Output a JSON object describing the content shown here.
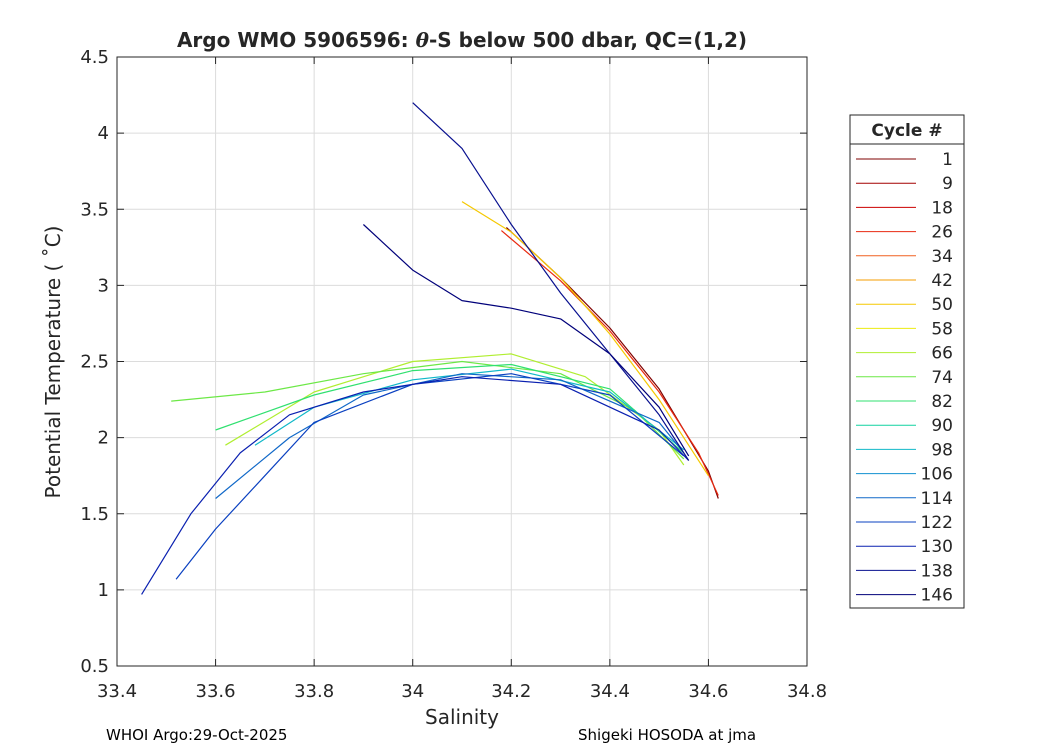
{
  "chart_data": {
    "type": "line",
    "title_prefix": "Argo WMO 5906596: ",
    "title_symbol": "θ",
    "title_suffix": "-S below 500 dbar,  QC=(1,2)",
    "xlabel": "Salinity",
    "ylabel": "Potential Temperature ( ˚C)",
    "xlim": [
      33.4,
      34.8
    ],
    "ylim": [
      0.5,
      4.5
    ],
    "xticks": [
      33.4,
      33.6,
      33.8,
      34,
      34.2,
      34.4,
      34.6,
      34.8
    ],
    "xtick_labels": [
      "33.4",
      "33.6",
      "33.8",
      "34",
      "34.2",
      "34.4",
      "34.6",
      "34.8"
    ],
    "yticks": [
      0.5,
      1,
      1.5,
      2,
      2.5,
      3,
      3.5,
      4,
      4.5
    ],
    "ytick_labels": [
      "0.5",
      "1",
      "1.5",
      "2",
      "2.5",
      "3",
      "3.5",
      "4",
      "4.5"
    ],
    "grid": true,
    "legend_title": "Cycle #",
    "legend_position": "outside-right",
    "legend_entries": [
      {
        "label": "1",
        "color": "#7f0000"
      },
      {
        "label": "9",
        "color": "#a30000"
      },
      {
        "label": "18",
        "color": "#cc0000"
      },
      {
        "label": "26",
        "color": "#e82a10"
      },
      {
        "label": "34",
        "color": "#f06020"
      },
      {
        "label": "42",
        "color": "#f59c00"
      },
      {
        "label": "50",
        "color": "#f5c800"
      },
      {
        "label": "58",
        "color": "#ecec10"
      },
      {
        "label": "66",
        "color": "#b0ee30"
      },
      {
        "label": "74",
        "color": "#6ce846"
      },
      {
        "label": "82",
        "color": "#30e070"
      },
      {
        "label": "90",
        "color": "#10d2a0"
      },
      {
        "label": "98",
        "color": "#10b8c8"
      },
      {
        "label": "106",
        "color": "#1090d0"
      },
      {
        "label": "114",
        "color": "#1068c8"
      },
      {
        "label": "122",
        "color": "#0a40c0"
      },
      {
        "label": "130",
        "color": "#0a20b0"
      },
      {
        "label": "138",
        "color": "#08108f"
      },
      {
        "label": "146",
        "color": "#00007a"
      }
    ],
    "series": [
      {
        "name": "1",
        "color": "#7f0000",
        "x": [
          34.19,
          34.3,
          34.4,
          34.5,
          34.6,
          34.62
        ],
        "y": [
          3.38,
          3.05,
          2.72,
          2.32,
          1.78,
          1.6
        ]
      },
      {
        "name": "26",
        "color": "#e82a10",
        "x": [
          34.18,
          34.3,
          34.4,
          34.5,
          34.58,
          34.62
        ],
        "y": [
          3.36,
          3.03,
          2.7,
          2.3,
          1.9,
          1.62
        ]
      },
      {
        "name": "50",
        "color": "#f5c800",
        "x": [
          34.1,
          34.2,
          34.3,
          34.4,
          34.5,
          34.6
        ],
        "y": [
          3.55,
          3.35,
          3.05,
          2.68,
          2.25,
          1.75
        ]
      },
      {
        "name": "66",
        "color": "#b0ee30",
        "x": [
          33.62,
          33.8,
          34.0,
          34.2,
          34.35,
          34.5,
          34.55
        ],
        "y": [
          1.95,
          2.3,
          2.5,
          2.55,
          2.4,
          2.05,
          1.82
        ]
      },
      {
        "name": "74",
        "color": "#6ce846",
        "x": [
          33.51,
          33.7,
          33.9,
          34.1,
          34.3,
          34.45,
          34.55
        ],
        "y": [
          2.24,
          2.3,
          2.42,
          2.5,
          2.42,
          2.18,
          1.86
        ]
      },
      {
        "name": "82",
        "color": "#30e070",
        "x": [
          33.6,
          33.8,
          34.0,
          34.2,
          34.4,
          34.55
        ],
        "y": [
          2.05,
          2.28,
          2.44,
          2.48,
          2.32,
          1.9
        ]
      },
      {
        "name": "98",
        "color": "#10b8c8",
        "x": [
          33.68,
          33.8,
          34.0,
          34.2,
          34.4,
          34.55
        ],
        "y": [
          1.95,
          2.2,
          2.38,
          2.45,
          2.3,
          1.92
        ]
      },
      {
        "name": "114",
        "color": "#1068c8",
        "x": [
          33.6,
          33.75,
          33.9,
          34.1,
          34.3,
          34.5,
          34.55
        ],
        "y": [
          1.6,
          2.0,
          2.28,
          2.42,
          2.38,
          2.1,
          1.9
        ]
      },
      {
        "name": "122",
        "color": "#0a40c0",
        "x": [
          33.52,
          33.6,
          33.7,
          33.8,
          34.0,
          34.2,
          34.4,
          34.55
        ],
        "y": [
          1.07,
          1.4,
          1.75,
          2.1,
          2.35,
          2.42,
          2.28,
          1.88
        ]
      },
      {
        "name": "130",
        "color": "#0a20b0",
        "x": [
          33.45,
          33.55,
          33.65,
          33.75,
          33.9,
          34.1,
          34.3,
          34.5,
          34.56
        ],
        "y": [
          0.97,
          1.5,
          1.9,
          2.15,
          2.3,
          2.4,
          2.35,
          2.05,
          1.85
        ]
      },
      {
        "name": "138",
        "color": "#08108f",
        "x": [
          34.0,
          34.1,
          34.2,
          34.3,
          34.4,
          34.5,
          34.56
        ],
        "y": [
          4.2,
          3.9,
          3.4,
          2.95,
          2.55,
          2.15,
          1.85
        ]
      },
      {
        "name": "146",
        "color": "#00007a",
        "x": [
          33.9,
          34.0,
          34.1,
          34.2,
          34.3,
          34.4,
          34.5,
          34.56
        ],
        "y": [
          3.4,
          3.1,
          2.9,
          2.85,
          2.78,
          2.55,
          2.2,
          1.88
        ]
      }
    ]
  },
  "footer": {
    "left": "WHOI Argo:29-Oct-2025",
    "right": "Shigeki HOSODA at jma"
  }
}
